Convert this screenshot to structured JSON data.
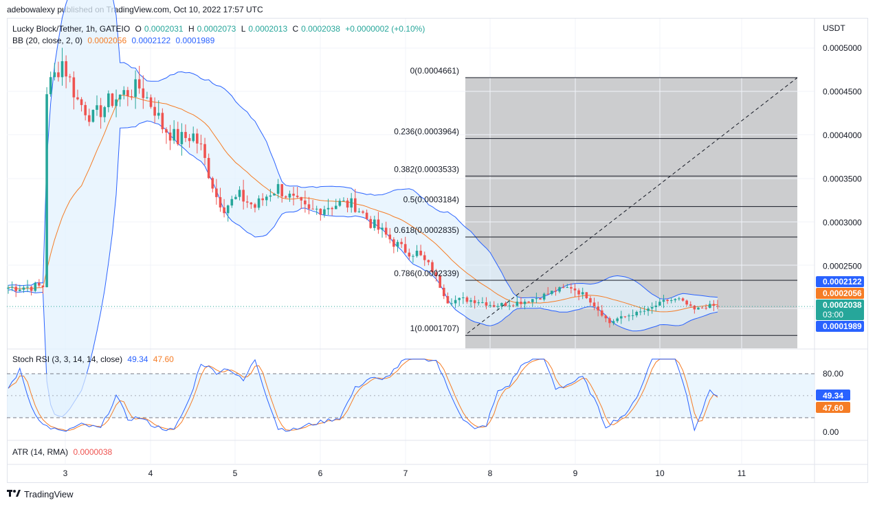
{
  "header": {
    "publisher": "adebowalexy published on TradingView.com, Oct 10, 2022 17:57 UTC"
  },
  "legend": {
    "symbol": "Lucky Block/Tether, 1h, GATEIO",
    "o_label": "O",
    "o_value": "0.0002031",
    "h_label": "H",
    "h_value": "0.0002073",
    "l_label": "L",
    "l_value": "0.0002013",
    "c_label": "C",
    "c_value": "0.0002038",
    "change": "+0.0000002 (+0.10%)",
    "bb_label": "BB (20, close, 2, 0)",
    "bb_basis": "0.0002056",
    "bb_upper": "0.0002122",
    "bb_lower": "0.0001989"
  },
  "axis": {
    "currency": "USDT",
    "price_ticks": [
      "0.0005000",
      "0.0004500",
      "0.0004000",
      "0.0003500",
      "0.0003000",
      "0.0002500"
    ],
    "price_badges": {
      "upper": "0.0002122",
      "basis": "0.0002056",
      "last": "0.0002038",
      "countdown": "03:00",
      "lower": "0.0001989"
    },
    "time_ticks": [
      "3",
      "4",
      "5",
      "6",
      "7",
      "8",
      "9",
      "10",
      "11"
    ]
  },
  "fibonacci": {
    "levels": [
      {
        "label": "0(0.0004661)",
        "price": 0.0004661
      },
      {
        "label": "0.236(0.0003964)",
        "price": 0.0003964
      },
      {
        "label": "0.382(0.0003533)",
        "price": 0.0003533
      },
      {
        "label": "0.5(0.0003184)",
        "price": 0.0003184
      },
      {
        "label": "0.618(0.0002835)",
        "price": 0.0002835
      },
      {
        "label": "0.786(0.0002339)",
        "price": 0.0002339
      },
      {
        "label": "1(0.0001707)",
        "price": 0.0001707
      }
    ]
  },
  "stoch": {
    "label": "Stoch RSI (3, 3, 14, 14, close)",
    "k_value": "49.34",
    "d_value": "47.60",
    "ticks": [
      "80.00",
      "0.00"
    ],
    "badge_k": "49.34",
    "badge_d": "47.60"
  },
  "atr": {
    "label": "ATR (14, RMA)",
    "value": "0.0000038"
  },
  "footer": {
    "brand": "TradingView"
  },
  "colors": {
    "up": "#26a69a",
    "down": "#ef5350",
    "bb_basis": "#f57c25",
    "bb_band": "#2962ff",
    "bb_fill": "#e3f2fd",
    "fib_fill": "#c9cacc",
    "stoch_k": "#2962ff",
    "stoch_d": "#f57c25"
  },
  "chart_data": {
    "type": "candlestick",
    "title": "Lucky Block/Tether, 1h, GATEIO",
    "ylabel": "USDT",
    "ylim": [
      0.00016,
      0.00053
    ],
    "x": [
      "3",
      "4",
      "5",
      "6",
      "7",
      "8",
      "9",
      "10",
      "11"
    ],
    "series": [
      {
        "name": "BB (20, close, 2, 0)",
        "basis": 0.0002056,
        "upper": 0.0002122,
        "lower": 0.0001989
      },
      {
        "name": "Stoch RSI (3, 3, 14, 14, close)",
        "k": 49.34,
        "d": 47.6
      },
      {
        "name": "ATR (14, RMA)",
        "value": 3.8e-06
      }
    ],
    "last_close": 0.0002038
  }
}
